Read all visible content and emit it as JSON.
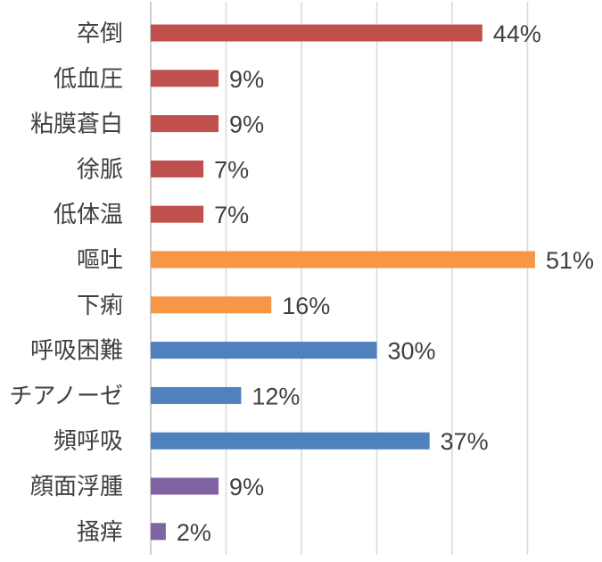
{
  "chart_data": {
    "type": "bar",
    "orientation": "horizontal",
    "xlim": [
      0,
      60
    ],
    "grid": true,
    "categories": [
      "卒倒",
      "低血圧",
      "粘膜蒼白",
      "徐脈",
      "低体温",
      "嘔吐",
      "下痢",
      "呼吸困難",
      "チアノーゼ",
      "頻呼吸",
      "顔面浮腫",
      "掻痒"
    ],
    "values": [
      44,
      9,
      9,
      7,
      7,
      51,
      16,
      30,
      12,
      37,
      9,
      2
    ],
    "value_labels": [
      "44%",
      "9%",
      "9%",
      "7%",
      "7%",
      "51%",
      "16%",
      "30%",
      "12%",
      "37%",
      "9%",
      "2%"
    ],
    "colors": [
      "#c0504d",
      "#c0504d",
      "#c0504d",
      "#c0504d",
      "#c0504d",
      "#f79646",
      "#f79646",
      "#4f81bd",
      "#4f81bd",
      "#4f81bd",
      "#8064a2",
      "#8064a2"
    ]
  }
}
